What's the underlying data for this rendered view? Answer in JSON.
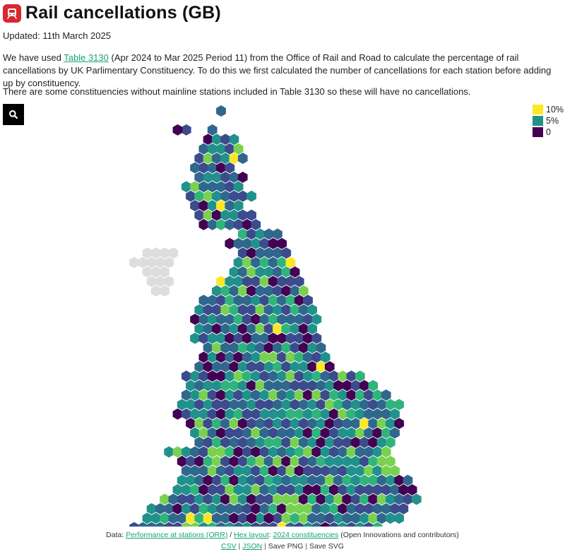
{
  "header": {
    "title": "Rail cancellations (GB)",
    "logo_icon": "train-icon"
  },
  "updated": "Updated: 11th March 2025",
  "intro": {
    "p1_before": "We have used ",
    "p1_link": "Table 3130",
    "p1_after": " (Apr 2024 to Mar 2025 Period 11) from the Office of Rail and Road to calculate the percentage of rail cancellations by UK Parlimentary Constituency. To do this we first calculated the number of cancellations for each station before adding up by constituency.",
    "p2": "There are some constituencies without mainline stations included in Table 3130 so these will have no cancellations."
  },
  "search": {
    "icon": "search-icon"
  },
  "legend": [
    {
      "label": "10%",
      "color": "#fde725"
    },
    {
      "label": "5%",
      "color": "#21918c"
    },
    {
      "label": "0",
      "color": "#440154"
    }
  ],
  "map": {
    "colors": {
      "zero": "#440154",
      "low": "#3b4b8c",
      "mid_low": "#30678d",
      "mid": "#21918c",
      "mid_high": "#2fb47c",
      "high": "#7ad151",
      "top": "#fde725",
      "no_data": "#dddddd",
      "border": "#ffffff"
    }
  },
  "footer": {
    "data_prefix": "Data: ",
    "data_link": "Performance at stations (ORR)",
    "slash": " / ",
    "hex_link": "Hex layout",
    "colon": ": ",
    "const_link": "2024 constituencies",
    "credit": " (Open Innovations and contributors)",
    "csv": "CSV",
    "json": "JSON",
    "png": "Save PNG",
    "svg": "Save SVG",
    "pipe": " | "
  }
}
